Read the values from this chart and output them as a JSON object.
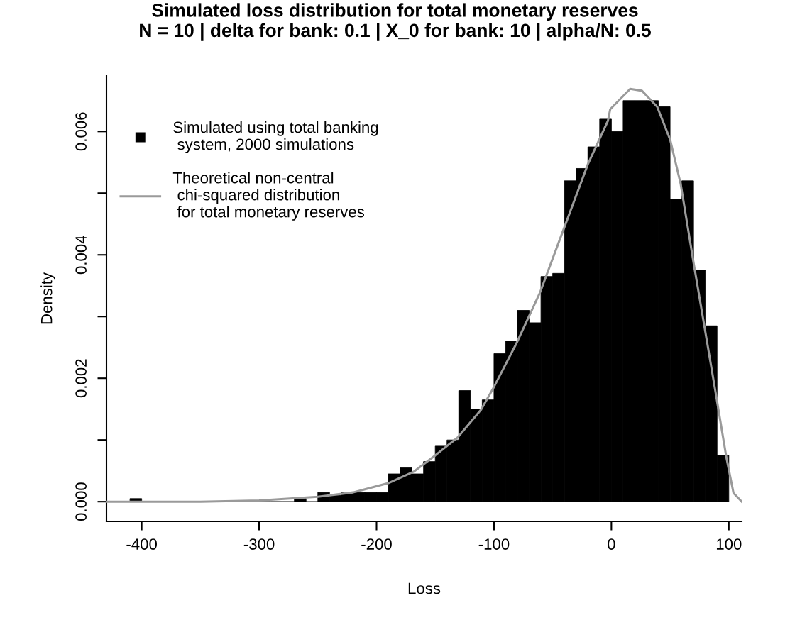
{
  "chart_data": {
    "type": "histogram",
    "title": "Simulated loss distribution for total monetary reserves\nN = 10 | delta for bank: 0.1 | X_0 for bank: 10 | alpha/N: 0.5",
    "xlabel": "Loss",
    "ylabel": "Density",
    "series": [
      {
        "name": "Simulated using total banking\n system, 2000 simulations",
        "color": "#000000",
        "bins": [
          -410,
          -400,
          -390,
          -380,
          -370,
          -360,
          -350,
          -340,
          -330,
          -320,
          -310,
          -300,
          -290,
          -280,
          -270,
          -260,
          -250,
          -240,
          -230,
          -220,
          -210,
          -200,
          -190,
          -180,
          -170,
          -160,
          -150,
          -140,
          -130,
          -120,
          -110,
          -100,
          -90,
          -80,
          -70,
          -60,
          -50,
          -40,
          -30,
          -20,
          -10,
          0,
          10,
          20,
          30,
          40,
          50,
          60,
          70,
          80,
          90,
          100
        ],
        "values": [
          5e-05,
          0,
          0,
          0,
          0,
          0,
          0,
          0,
          0,
          0,
          0,
          0,
          0,
          0,
          5e-05,
          0,
          0.00015,
          0.0001,
          0.00015,
          0.00015,
          0.00015,
          0.00015,
          0.00045,
          0.00055,
          0.00045,
          0.00065,
          0.0009,
          0.001,
          0.0018,
          0.0015,
          0.00165,
          0.0024,
          0.0026,
          0.0031,
          0.0029,
          0.00365,
          0.0037,
          0.0052,
          0.0054,
          0.00575,
          0.0062,
          0.006,
          0.0065,
          0.0065,
          0.0065,
          0.0064,
          0.0049,
          0.0052,
          0.00375,
          0.00285,
          0.00075
        ]
      },
      {
        "type": "line",
        "name": "Theoretical non-central\n chi-squared distribution\n for total monetary reserves",
        "color": "#9a9a9a",
        "x": [
          -430,
          -400,
          -350,
          -300,
          -250,
          -220,
          -190,
          -168,
          -150,
          -131,
          -111,
          -100,
          -81,
          -61,
          -40,
          -20,
          -3,
          -1,
          16,
          26,
          39,
          50,
          59,
          70,
          81,
          89,
          98,
          104,
          111
        ],
        "values": [
          0,
          0,
          0,
          2e-05,
          8e-05,
          0.00015,
          0.0003,
          0.00049,
          0.00075,
          0.00104,
          0.00149,
          0.00186,
          0.00256,
          0.00338,
          0.00445,
          0.00547,
          0.00617,
          0.00636,
          0.00669,
          0.00666,
          0.0064,
          0.00587,
          0.00515,
          0.00387,
          0.00264,
          0.00174,
          0.00071,
          0.00014,
          0
        ]
      }
    ],
    "xlim": [
      -430,
      111
    ],
    "ylim": [
      -0.00032,
      0.0069
    ],
    "xticks": [
      -400,
      -300,
      -200,
      -100,
      0,
      100
    ],
    "yticks": [
      {
        "value": 0,
        "label": "0.000"
      },
      {
        "value": 0.001,
        "label": null
      },
      {
        "value": 0.002,
        "label": "0.002"
      },
      {
        "value": 0.003,
        "label": null
      },
      {
        "value": 0.004,
        "label": "0.004"
      },
      {
        "value": 0.005,
        "label": null
      },
      {
        "value": 0.006,
        "label": "0.006"
      }
    ],
    "grid": false,
    "legend": "top left"
  }
}
